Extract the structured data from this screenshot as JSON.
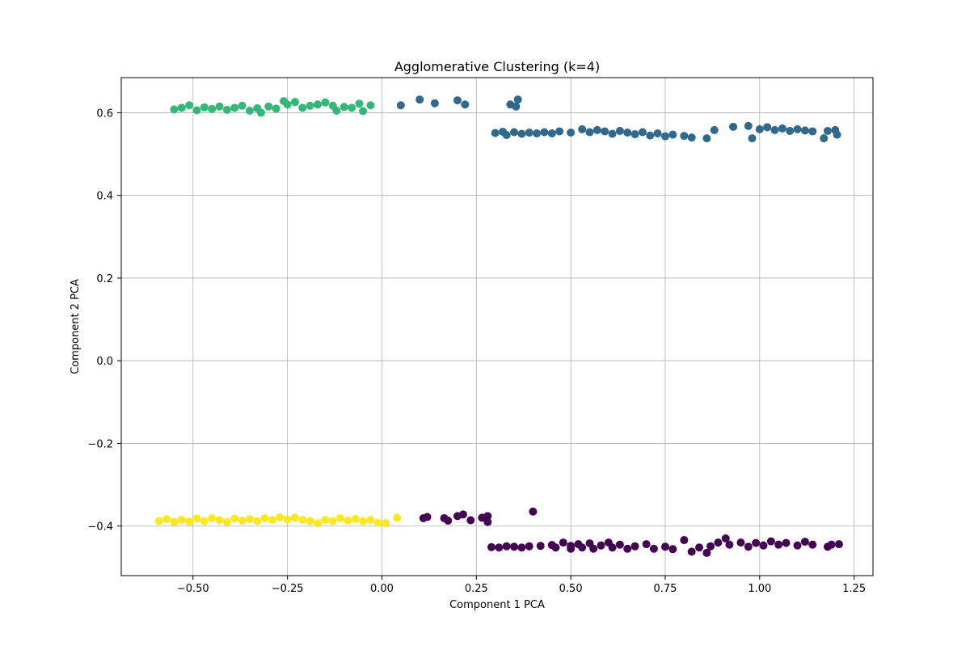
{
  "chart_data": {
    "type": "scatter",
    "title": "Agglomerative Clustering (k=4)",
    "xlabel": "Component 1 PCA",
    "ylabel": "Component 2 PCA",
    "xlim": [
      -0.69,
      1.3
    ],
    "ylim": [
      -0.52,
      0.685
    ],
    "grid": true,
    "x_ticks": [
      -0.5,
      -0.25,
      0.0,
      0.25,
      0.5,
      0.75,
      1.0,
      1.25
    ],
    "x_tick_labels": [
      "−0.50",
      "−0.25",
      "0.00",
      "0.25",
      "0.50",
      "0.75",
      "1.00",
      "1.25"
    ],
    "y_ticks": [
      -0.4,
      -0.2,
      0.0,
      0.2,
      0.4,
      0.6
    ],
    "y_tick_labels": [
      "−0.4",
      "−0.2",
      "0.0",
      "0.2",
      "0.4",
      "0.6"
    ],
    "series": [
      {
        "color": "#440154",
        "points": [
          [
            0.11,
            -0.381
          ],
          [
            0.12,
            -0.378
          ],
          [
            0.165,
            -0.381
          ],
          [
            0.175,
            -0.387
          ],
          [
            0.2,
            -0.376
          ],
          [
            0.215,
            -0.372
          ],
          [
            0.235,
            -0.386
          ],
          [
            0.265,
            -0.38
          ],
          [
            0.28,
            -0.376
          ],
          [
            0.28,
            -0.39
          ],
          [
            0.4,
            -0.365
          ],
          [
            0.29,
            -0.451
          ],
          [
            0.31,
            -0.452
          ],
          [
            0.33,
            -0.449
          ],
          [
            0.35,
            -0.45
          ],
          [
            0.37,
            -0.452
          ],
          [
            0.39,
            -0.449
          ],
          [
            0.42,
            -0.448
          ],
          [
            0.45,
            -0.446
          ],
          [
            0.46,
            -0.452
          ],
          [
            0.48,
            -0.44
          ],
          [
            0.5,
            -0.448
          ],
          [
            0.5,
            -0.455
          ],
          [
            0.52,
            -0.444
          ],
          [
            0.53,
            -0.452
          ],
          [
            0.55,
            -0.442
          ],
          [
            0.56,
            -0.455
          ],
          [
            0.58,
            -0.447
          ],
          [
            0.6,
            -0.44
          ],
          [
            0.61,
            -0.452
          ],
          [
            0.63,
            -0.445
          ],
          [
            0.65,
            -0.455
          ],
          [
            0.67,
            -0.449
          ],
          [
            0.7,
            -0.444
          ],
          [
            0.72,
            -0.455
          ],
          [
            0.75,
            -0.45
          ],
          [
            0.77,
            -0.456
          ],
          [
            0.8,
            -0.434
          ],
          [
            0.82,
            -0.462
          ],
          [
            0.84,
            -0.452
          ],
          [
            0.86,
            -0.465
          ],
          [
            0.87,
            -0.449
          ],
          [
            0.89,
            -0.44
          ],
          [
            0.91,
            -0.43
          ],
          [
            0.92,
            -0.445
          ],
          [
            0.95,
            -0.44
          ],
          [
            0.97,
            -0.45
          ],
          [
            0.99,
            -0.441
          ],
          [
            1.01,
            -0.447
          ],
          [
            1.03,
            -0.437
          ],
          [
            1.05,
            -0.445
          ],
          [
            1.07,
            -0.441
          ],
          [
            1.1,
            -0.447
          ],
          [
            1.12,
            -0.438
          ],
          [
            1.14,
            -0.445
          ],
          [
            1.18,
            -0.45
          ],
          [
            1.19,
            -0.445
          ],
          [
            1.21,
            -0.444
          ]
        ]
      },
      {
        "color": "#31688e",
        "points": [
          [
            0.05,
            0.618
          ],
          [
            0.1,
            0.632
          ],
          [
            0.14,
            0.623
          ],
          [
            0.2,
            0.63
          ],
          [
            0.22,
            0.62
          ],
          [
            0.34,
            0.62
          ],
          [
            0.355,
            0.615
          ],
          [
            0.36,
            0.632
          ],
          [
            0.3,
            0.551
          ],
          [
            0.32,
            0.554
          ],
          [
            0.33,
            0.546
          ],
          [
            0.35,
            0.553
          ],
          [
            0.37,
            0.549
          ],
          [
            0.39,
            0.552
          ],
          [
            0.41,
            0.55
          ],
          [
            0.43,
            0.553
          ],
          [
            0.45,
            0.55
          ],
          [
            0.47,
            0.555
          ],
          [
            0.5,
            0.552
          ],
          [
            0.53,
            0.56
          ],
          [
            0.55,
            0.553
          ],
          [
            0.57,
            0.558
          ],
          [
            0.59,
            0.555
          ],
          [
            0.61,
            0.549
          ],
          [
            0.63,
            0.556
          ],
          [
            0.65,
            0.552
          ],
          [
            0.67,
            0.548
          ],
          [
            0.69,
            0.553
          ],
          [
            0.71,
            0.545
          ],
          [
            0.73,
            0.55
          ],
          [
            0.75,
            0.543
          ],
          [
            0.77,
            0.547
          ],
          [
            0.8,
            0.544
          ],
          [
            0.82,
            0.54
          ],
          [
            0.86,
            0.538
          ],
          [
            0.88,
            0.558
          ],
          [
            0.93,
            0.566
          ],
          [
            0.97,
            0.568
          ],
          [
            0.98,
            0.538
          ],
          [
            1.0,
            0.56
          ],
          [
            1.02,
            0.565
          ],
          [
            1.04,
            0.558
          ],
          [
            1.06,
            0.562
          ],
          [
            1.08,
            0.556
          ],
          [
            1.1,
            0.56
          ],
          [
            1.12,
            0.557
          ],
          [
            1.14,
            0.555
          ],
          [
            1.17,
            0.538
          ],
          [
            1.18,
            0.556
          ],
          [
            1.2,
            0.558
          ],
          [
            1.205,
            0.547
          ]
        ]
      },
      {
        "color": "#35b779",
        "points": [
          [
            -0.55,
            0.608
          ],
          [
            -0.53,
            0.612
          ],
          [
            -0.51,
            0.618
          ],
          [
            -0.49,
            0.606
          ],
          [
            -0.47,
            0.613
          ],
          [
            -0.45,
            0.609
          ],
          [
            -0.43,
            0.615
          ],
          [
            -0.41,
            0.607
          ],
          [
            -0.39,
            0.612
          ],
          [
            -0.37,
            0.617
          ],
          [
            -0.35,
            0.605
          ],
          [
            -0.33,
            0.611
          ],
          [
            -0.32,
            0.6
          ],
          [
            -0.3,
            0.615
          ],
          [
            -0.28,
            0.61
          ],
          [
            -0.26,
            0.628
          ],
          [
            -0.25,
            0.62
          ],
          [
            -0.23,
            0.626
          ],
          [
            -0.21,
            0.612
          ],
          [
            -0.19,
            0.617
          ],
          [
            -0.17,
            0.62
          ],
          [
            -0.15,
            0.625
          ],
          [
            -0.13,
            0.617
          ],
          [
            -0.12,
            0.605
          ],
          [
            -0.1,
            0.614
          ],
          [
            -0.08,
            0.612
          ],
          [
            -0.06,
            0.622
          ],
          [
            -0.05,
            0.604
          ],
          [
            -0.03,
            0.618
          ]
        ]
      },
      {
        "color": "#fde725",
        "points": [
          [
            -0.59,
            -0.388
          ],
          [
            -0.57,
            -0.383
          ],
          [
            -0.55,
            -0.39
          ],
          [
            -0.53,
            -0.385
          ],
          [
            -0.51,
            -0.389
          ],
          [
            -0.49,
            -0.382
          ],
          [
            -0.47,
            -0.388
          ],
          [
            -0.45,
            -0.381
          ],
          [
            -0.43,
            -0.386
          ],
          [
            -0.41,
            -0.39
          ],
          [
            -0.39,
            -0.382
          ],
          [
            -0.37,
            -0.387
          ],
          [
            -0.35,
            -0.383
          ],
          [
            -0.33,
            -0.388
          ],
          [
            -0.31,
            -0.381
          ],
          [
            -0.29,
            -0.385
          ],
          [
            -0.27,
            -0.379
          ],
          [
            -0.25,
            -0.384
          ],
          [
            -0.23,
            -0.38
          ],
          [
            -0.21,
            -0.385
          ],
          [
            -0.19,
            -0.388
          ],
          [
            -0.17,
            -0.393
          ],
          [
            -0.15,
            -0.385
          ],
          [
            -0.13,
            -0.388
          ],
          [
            -0.11,
            -0.381
          ],
          [
            -0.09,
            -0.387
          ],
          [
            -0.07,
            -0.383
          ],
          [
            -0.05,
            -0.388
          ],
          [
            -0.03,
            -0.385
          ],
          [
            -0.01,
            -0.392
          ],
          [
            0.01,
            -0.393
          ],
          [
            0.04,
            -0.38
          ]
        ]
      }
    ]
  }
}
